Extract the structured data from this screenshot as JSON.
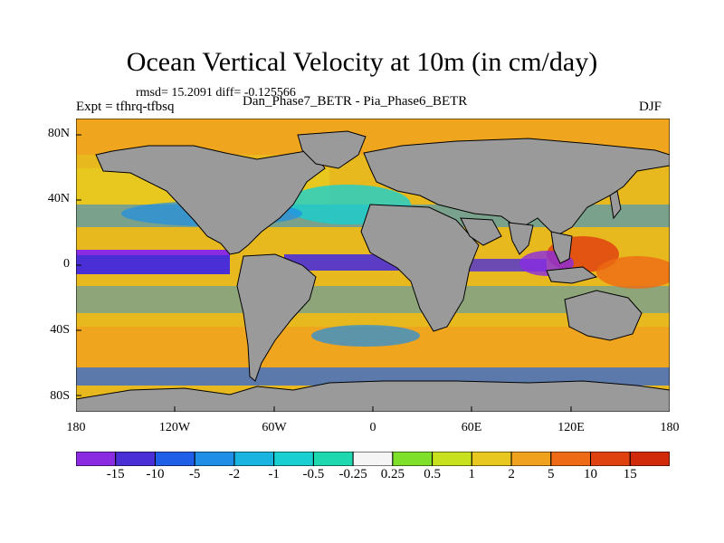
{
  "title": "Ocean Vertical Velocity at 10m (in cm/day)",
  "stats": "rmsd= 15.2091 diff= -0.125566",
  "expt": "Expt = tfhrq-tfbsq",
  "subtitle": "Dan_Phase7_BETR - Pia_Phase6_BETR",
  "season": "DJF",
  "y_axis": {
    "ticks": [
      "80N",
      "40N",
      "0",
      "40S",
      "80S"
    ]
  },
  "x_axis": {
    "ticks": [
      "180",
      "120W",
      "60W",
      "0",
      "60E",
      "120E",
      "180"
    ]
  },
  "colorbar": {
    "labels": [
      "-15",
      "-10",
      "-5",
      "-2",
      "-1",
      "-0.5",
      "-0.25",
      "0.25",
      "0.5",
      "1",
      "2",
      "5",
      "10",
      "15"
    ],
    "colors": [
      "#8a2be2",
      "#4b2fd6",
      "#1f5ee6",
      "#1e8ee6",
      "#19b4e0",
      "#19cfcf",
      "#1ed9b0",
      "#f5f5f5",
      "#7fe02a",
      "#c8e11e",
      "#e8c81e",
      "#f0a11e",
      "#ee6a14",
      "#e0420f",
      "#d12a0a"
    ]
  },
  "colors": {
    "land": "#9a9a9a",
    "ocean_base": "#e8b91e"
  }
}
